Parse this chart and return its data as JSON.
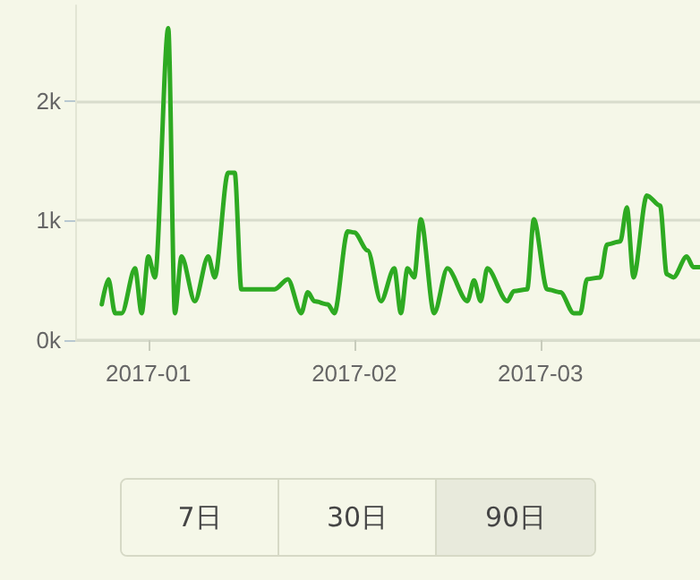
{
  "chart_data": {
    "type": "line",
    "x": [
      "2016-12-25",
      "2016-12-26",
      "2016-12-27",
      "2016-12-28",
      "2016-12-30",
      "2016-12-31",
      "2017-01-01",
      "2017-01-02",
      "2017-01-04",
      "2017-01-05",
      "2017-01-06",
      "2017-01-08",
      "2017-01-10",
      "2017-01-11",
      "2017-01-13",
      "2017-01-14",
      "2017-01-15",
      "2017-01-20",
      "2017-01-22",
      "2017-01-24",
      "2017-01-25",
      "2017-01-26",
      "2017-01-28",
      "2017-01-29",
      "2017-01-31",
      "2017-02-01",
      "2017-02-03",
      "2017-02-05",
      "2017-02-07",
      "2017-02-08",
      "2017-02-09",
      "2017-02-10",
      "2017-02-11",
      "2017-02-13",
      "2017-02-15",
      "2017-02-18",
      "2017-02-19",
      "2017-02-20",
      "2017-02-21",
      "2017-02-24",
      "2017-02-25",
      "2017-02-27",
      "2017-02-28",
      "2017-03-02",
      "2017-03-04",
      "2017-03-06",
      "2017-03-07",
      "2017-03-08",
      "2017-03-10",
      "2017-03-11",
      "2017-03-13",
      "2017-03-14",
      "2017-03-15",
      "2017-03-17",
      "2017-03-19",
      "2017-03-20",
      "2017-03-21",
      "2017-03-23",
      "2017-03-24",
      "2017-03-25"
    ],
    "series": [
      {
        "color": "#2eaa22",
        "values": [
          300,
          510,
          225,
          225,
          600,
          225,
          700,
          525,
          2610,
          225,
          700,
          325,
          700,
          525,
          1400,
          1400,
          425,
          425,
          510,
          225,
          400,
          325,
          300,
          225,
          910,
          900,
          750,
          325,
          600,
          225,
          600,
          525,
          1010,
          225,
          600,
          325,
          500,
          325,
          600,
          325,
          410,
          425,
          1010,
          425,
          400,
          225,
          225,
          510,
          525,
          800,
          825,
          1110,
          525,
          1210,
          1125,
          550,
          525,
          700,
          610,
          610
        ]
      }
    ],
    "xlim": [
      "2016-12-21",
      "2017-03-25"
    ],
    "xticks": [
      "2017-01",
      "2017-02",
      "2017-03"
    ],
    "ylim": [
      0,
      2800
    ],
    "yticks": [
      {
        "value": 0,
        "label": "0k"
      },
      {
        "value": 1000,
        "label": "1k"
      },
      {
        "value": 2000,
        "label": "2k"
      }
    ],
    "grid": "y",
    "marker": "none",
    "line_style": "solid",
    "annotations": [
      "7日",
      "30日",
      "90日"
    ]
  }
}
